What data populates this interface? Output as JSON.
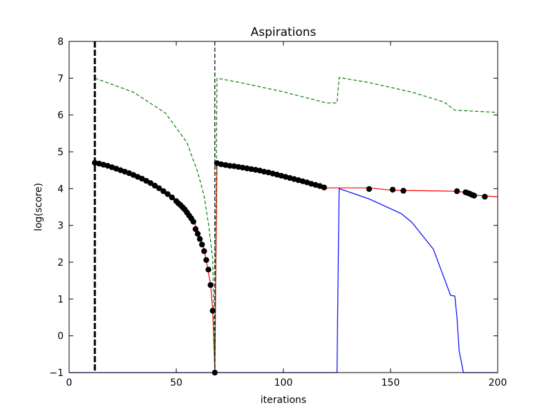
{
  "chart_data": {
    "type": "line",
    "title": "Aspirations",
    "xlabel": "iterations",
    "ylabel": "log(score)",
    "xlim": [
      0,
      200
    ],
    "ylim": [
      -1,
      8
    ],
    "xticks": [
      0,
      50,
      100,
      150,
      200
    ],
    "xtick_labels": [
      "0",
      "50",
      "100",
      "150",
      "200"
    ],
    "yticks": [
      -1,
      0,
      1,
      2,
      3,
      4,
      5,
      6,
      7,
      8
    ],
    "ytick_labels": [
      "−1",
      "0",
      "1",
      "2",
      "3",
      "4",
      "5",
      "6",
      "7",
      "8"
    ],
    "grid": false,
    "legend": "none",
    "colors": {
      "red_line": "#ff0000",
      "blue_line": "#0000ff",
      "green_dashed": "#008000",
      "points": "#000000",
      "vlines": "#000000"
    },
    "vlines": [
      {
        "x": 12,
        "style": "thick-dashed"
      },
      {
        "x": 68,
        "style": "thin-dashed"
      }
    ],
    "series": [
      {
        "style": "red-line",
        "x": [
          12,
          20,
          30,
          40,
          50,
          55,
          60,
          63,
          66,
          67,
          68,
          69,
          80,
          100,
          120,
          140,
          150,
          156,
          180,
          185,
          189,
          194,
          200
        ],
        "y": [
          4.7,
          4.6,
          4.4,
          4.1,
          3.7,
          3.4,
          2.9,
          2.35,
          1.4,
          0.7,
          -1.0,
          4.7,
          4.6,
          4.35,
          4.02,
          4.02,
          3.96,
          3.95,
          3.93,
          3.9,
          3.82,
          3.8,
          3.78
        ]
      },
      {
        "style": "blue-line",
        "x": [
          0,
          125,
          126,
          140,
          155,
          160,
          170,
          178,
          180,
          181,
          182,
          184,
          200
        ],
        "y": [
          -1.0,
          -1.0,
          4.0,
          3.72,
          3.32,
          3.08,
          2.35,
          1.1,
          1.08,
          0.5,
          -0.4,
          -1.0,
          -1.0
        ]
      },
      {
        "style": "green-dashed",
        "x": [
          12,
          30,
          45,
          55,
          60,
          63,
          65,
          67,
          68,
          69,
          80,
          100,
          120,
          125,
          126,
          140,
          160,
          175,
          180,
          190,
          200
        ],
        "y": [
          7.0,
          6.62,
          6.05,
          5.25,
          4.45,
          3.8,
          3.05,
          2.1,
          -1.0,
          7.0,
          6.88,
          6.63,
          6.33,
          6.33,
          7.02,
          6.88,
          6.62,
          6.35,
          6.13,
          6.1,
          6.07
        ]
      }
    ],
    "points": {
      "x": [
        12,
        14,
        16,
        18,
        20,
        22,
        24,
        26,
        28,
        30,
        32,
        34,
        36,
        38,
        40,
        42,
        44,
        46,
        48,
        50,
        51,
        52,
        53,
        54,
        55,
        56,
        57,
        58,
        59,
        60,
        61,
        62,
        63,
        64,
        65,
        66,
        67,
        68,
        69,
        71,
        73,
        75,
        77,
        79,
        81,
        83,
        85,
        87,
        89,
        91,
        93,
        95,
        97,
        99,
        101,
        103,
        105,
        107,
        109,
        111,
        113,
        115,
        117,
        119,
        140,
        151,
        156,
        181,
        185,
        186,
        187,
        188,
        189,
        194
      ],
      "y": [
        4.7,
        4.68,
        4.65,
        4.62,
        4.58,
        4.54,
        4.5,
        4.46,
        4.42,
        4.37,
        4.32,
        4.27,
        4.21,
        4.15,
        4.08,
        4.01,
        3.93,
        3.85,
        3.76,
        3.66,
        3.6,
        3.55,
        3.49,
        3.43,
        3.35,
        3.27,
        3.19,
        3.1,
        2.9,
        2.77,
        2.63,
        2.48,
        2.3,
        2.06,
        1.8,
        1.38,
        0.68,
        -1.0,
        4.69,
        4.66,
        4.64,
        4.62,
        4.61,
        4.59,
        4.57,
        4.55,
        4.53,
        4.51,
        4.49,
        4.46,
        4.44,
        4.41,
        4.38,
        4.35,
        4.32,
        4.29,
        4.26,
        4.23,
        4.2,
        4.17,
        4.13,
        4.1,
        4.07,
        4.03,
        3.99,
        3.97,
        3.94,
        3.93,
        3.9,
        3.88,
        3.86,
        3.83,
        3.81,
        3.78
      ]
    }
  }
}
